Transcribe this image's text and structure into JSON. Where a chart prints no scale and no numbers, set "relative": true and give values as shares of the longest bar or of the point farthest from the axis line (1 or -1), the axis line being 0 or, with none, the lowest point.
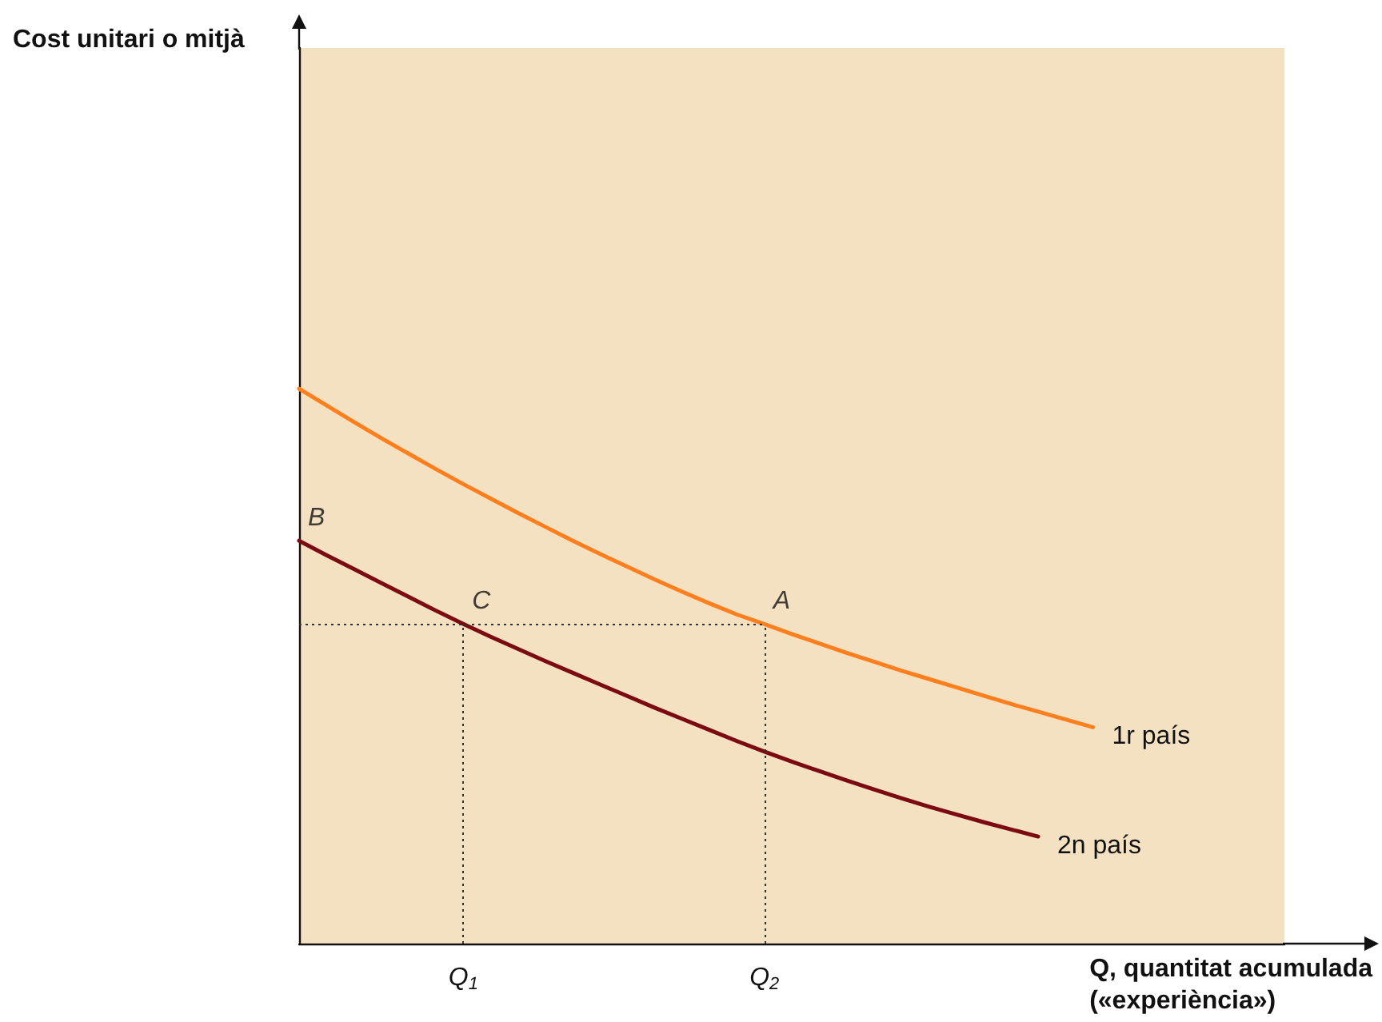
{
  "chart_data": {
    "type": "line",
    "relative": true,
    "xlabel": "Q, quantitat acumulada («experiència»)",
    "categories": [
      null,
      null,
      null,
      null,
      null,
      null,
      "Q$_{1}$",
      null,
      null,
      null,
      null,
      null,
      null,
      null,
      null,
      null,
      null,
      "Q$_{2}$",
      null,
      null,
      null,
      null,
      null,
      null,
      null,
      null,
      null,
      null,
      null,
      null,
      null,
      null,
      null,
      null,
      null,
      null,
      null
    ],
    "series": [
      {
        "name": "1r país",
        "color": "#ff7f1e",
        "values": [
          1.0,
          0.97,
          0.94,
          0.911,
          0.883,
          0.855,
          0.828,
          0.802,
          0.776,
          0.751,
          0.726,
          0.702,
          0.679,
          0.656,
          0.634,
          0.613,
          0.593,
          0.576,
          0.558,
          0.541,
          0.524,
          0.508,
          0.492,
          0.477,
          0.462,
          0.447,
          0.432,
          0.418,
          0.404,
          0.39,
          null,
          null,
          null,
          null,
          null,
          null,
          null
        ]
      },
      {
        "name": "2n país",
        "color": "#7b0b10",
        "values": [
          0.726,
          0.7,
          0.675,
          0.65,
          0.625,
          0.6,
          0.576,
          0.553,
          0.531,
          0.509,
          0.488,
          0.467,
          0.446,
          0.425,
          0.405,
          0.385,
          0.365,
          0.346,
          0.328,
          0.311,
          0.294,
          0.278,
          0.262,
          0.247,
          0.233,
          0.219,
          0.206,
          0.193,
          null,
          null,
          null,
          null,
          null,
          null,
          null,
          null,
          null
        ]
      }
    ],
    "ref_lines": [
      {
        "axis": "y",
        "value": 0.576,
        "line_style": "dotted"
      },
      {
        "axis": "x",
        "value": "Q$_{1}$",
        "line_style": "dotted"
      },
      {
        "axis": "x",
        "value": "Q$_{2}$",
        "line_style": "dotted"
      }
    ],
    "annotations": [
      "Cost unitari o mitjà",
      {
        "text": "B",
        "y": 0.726
      },
      {
        "text": "C",
        "x": "Q$_{1}$",
        "y": 0.576
      },
      {
        "text": "A",
        "x": "Q$_{2}$",
        "y": 0.576
      }
    ],
    "grid": false,
    "legend": false,
    "marker": "none",
    "line_style": "solid"
  }
}
